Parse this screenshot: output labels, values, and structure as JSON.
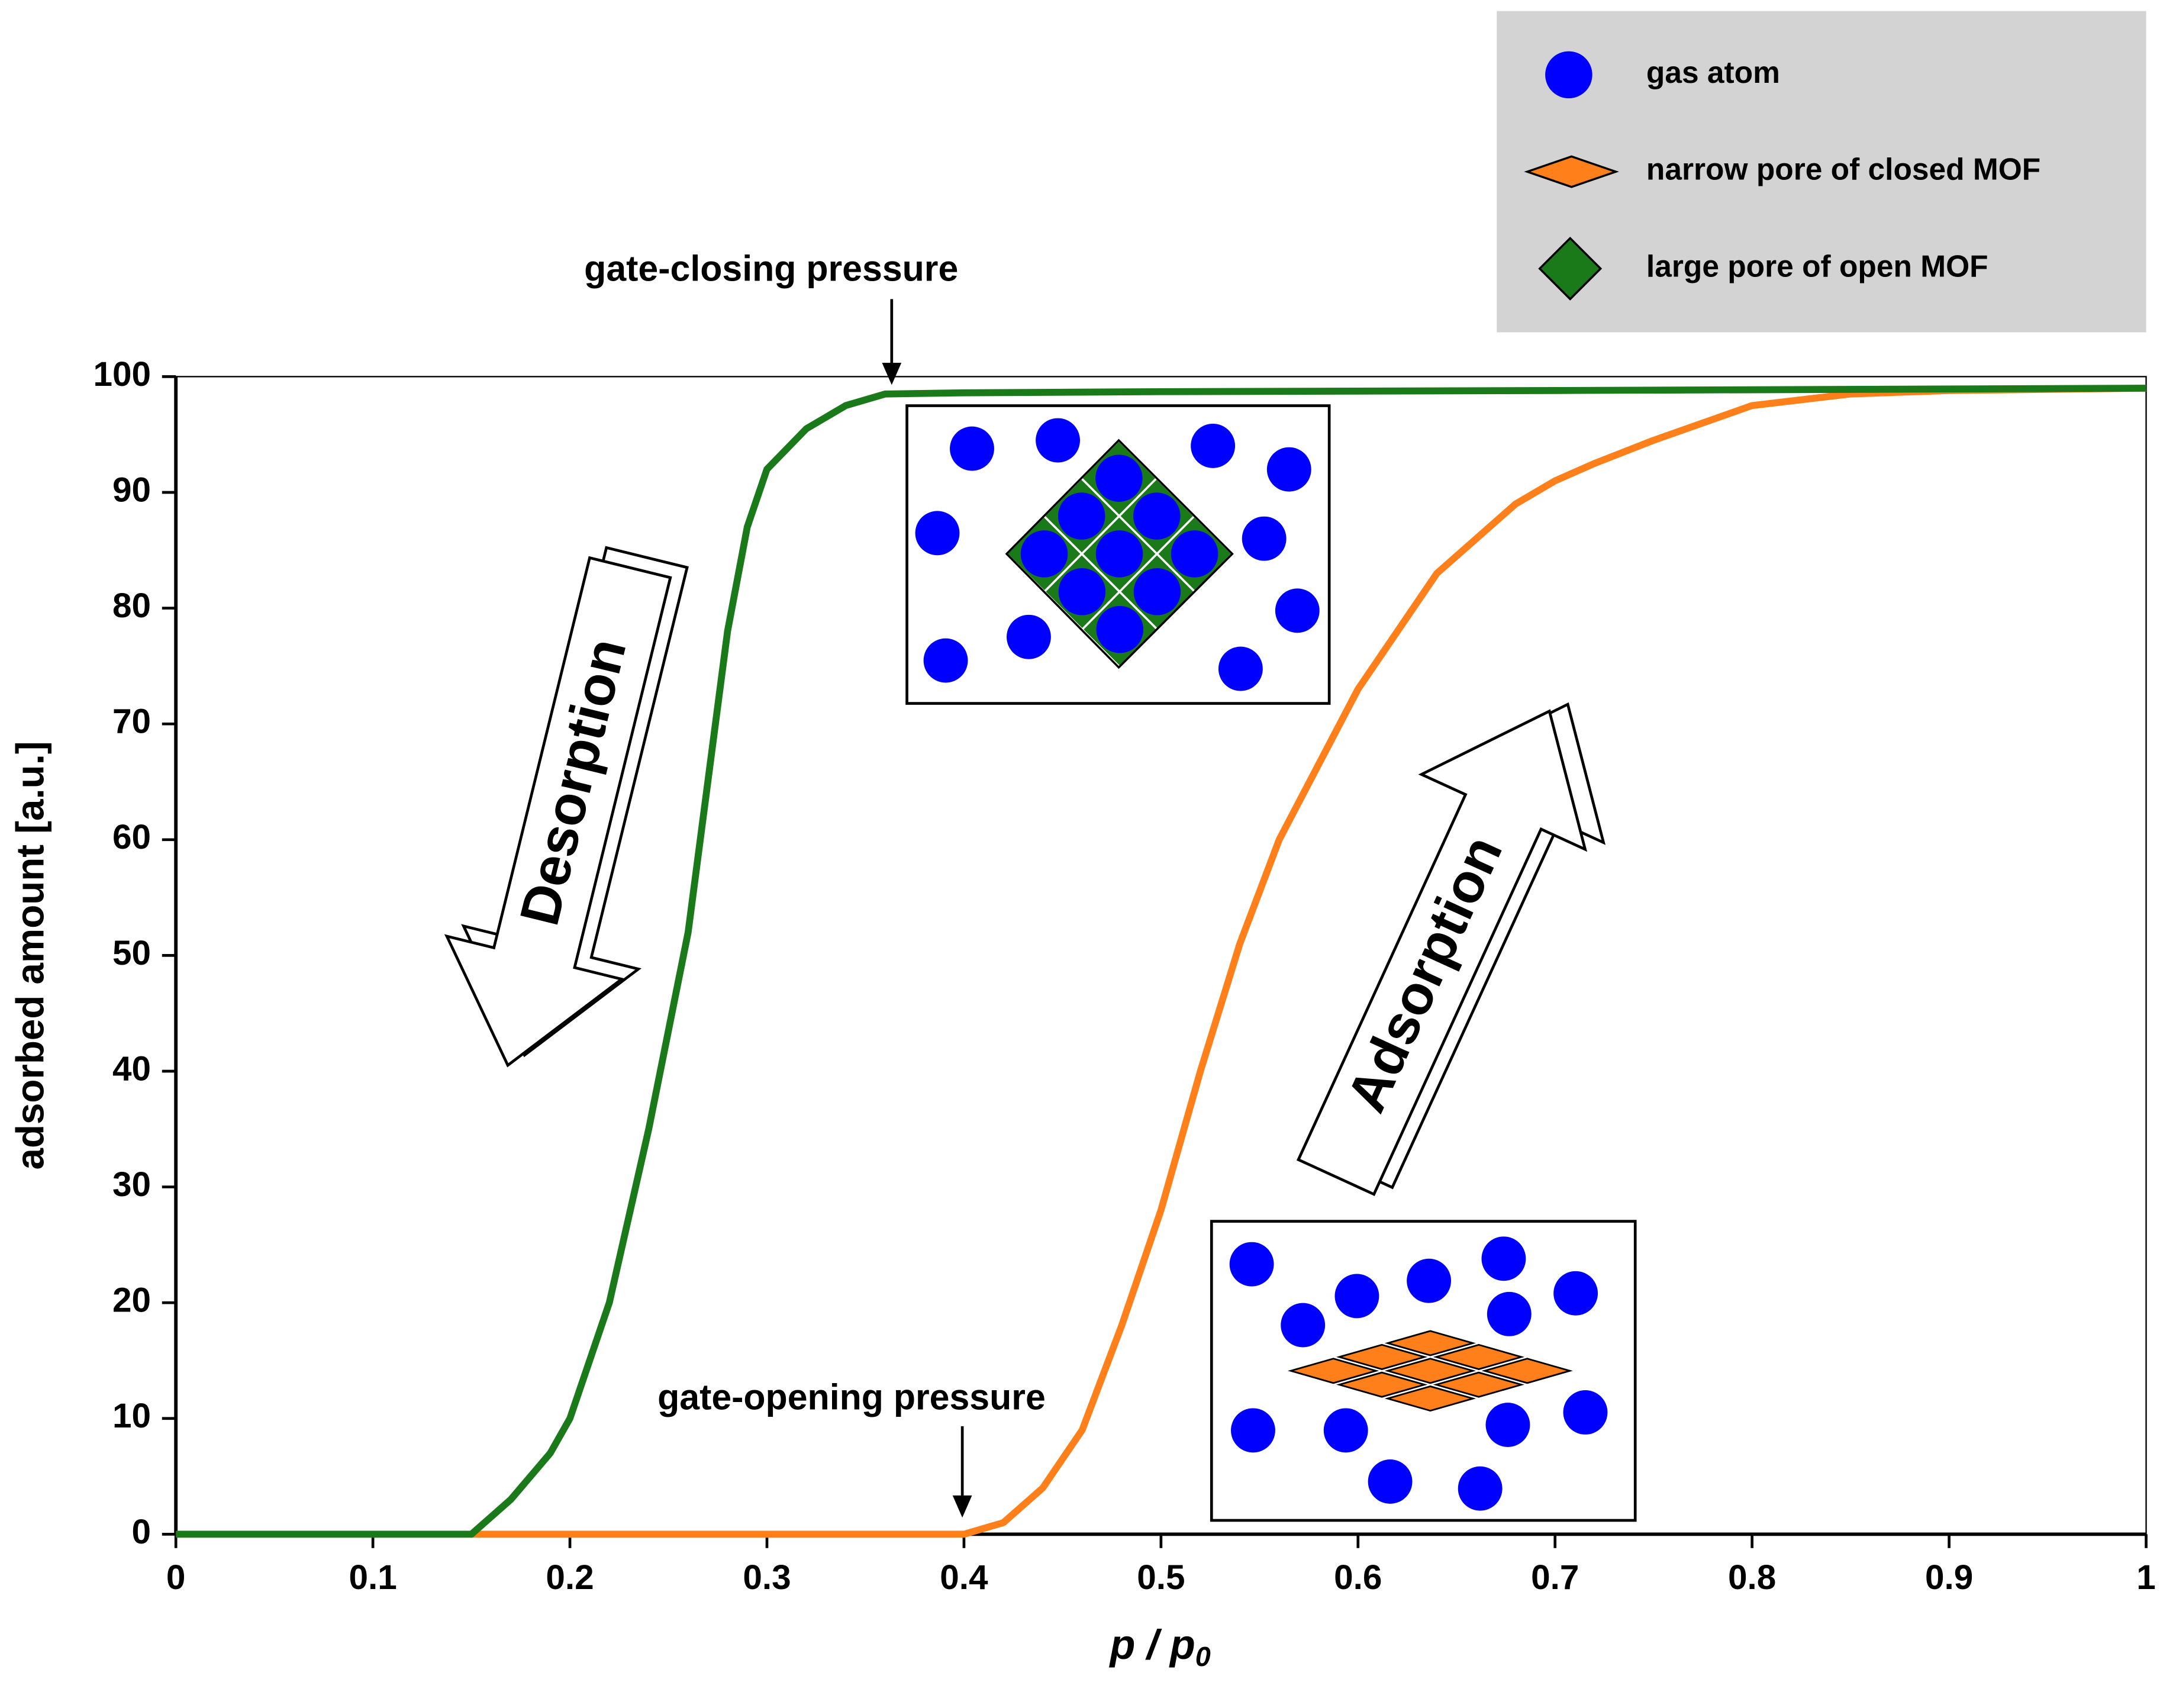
{
  "chart_data": {
    "type": "line",
    "xlabel": "p / p",
    "xlabel_subscript": "0",
    "ylabel": "adsorbed amount [a.u.]",
    "xlim": [
      0,
      1
    ],
    "xticks": [
      0,
      0.1,
      0.2,
      0.3,
      0.4,
      0.5,
      0.6,
      0.7,
      0.8,
      0.9,
      1
    ],
    "ylim": [
      0,
      100
    ],
    "yticks": [
      0,
      10,
      20,
      30,
      40,
      50,
      60,
      70,
      80,
      90,
      100
    ],
    "grid": false,
    "series": [
      {
        "name": "Desorption",
        "color": "#1a7a1a",
        "x": [
          0,
          0.15,
          0.17,
          0.19,
          0.2,
          0.22,
          0.24,
          0.26,
          0.27,
          0.28,
          0.29,
          0.3,
          0.32,
          0.34,
          0.36,
          0.4,
          0.5,
          0.7,
          1
        ],
        "values": [
          0,
          0,
          3,
          7,
          10,
          20,
          35,
          52,
          65,
          78,
          87,
          92,
          95.5,
          97.5,
          98.5,
          98.6,
          98.7,
          98.8,
          99
        ]
      },
      {
        "name": "Adsorption",
        "color": "#ff7f1a",
        "x": [
          0.15,
          0.4,
          0.42,
          0.44,
          0.46,
          0.48,
          0.5,
          0.52,
          0.54,
          0.56,
          0.6,
          0.64,
          0.68,
          0.7,
          0.72,
          0.75,
          0.8,
          0.85,
          0.9,
          1
        ],
        "values": [
          0,
          0,
          1,
          4,
          9,
          18,
          28,
          40,
          51,
          60,
          73,
          83,
          89,
          91,
          92.5,
          94.5,
          97.5,
          98.5,
          98.8,
          99
        ]
      }
    ],
    "annotations": [
      "gate-closing pressure",
      "gate-opening pressure"
    ],
    "legend": {
      "position": "upper right",
      "items": [
        "gas atom",
        "narrow pore of closed MOF",
        "large pore of open MOF"
      ]
    }
  }
}
